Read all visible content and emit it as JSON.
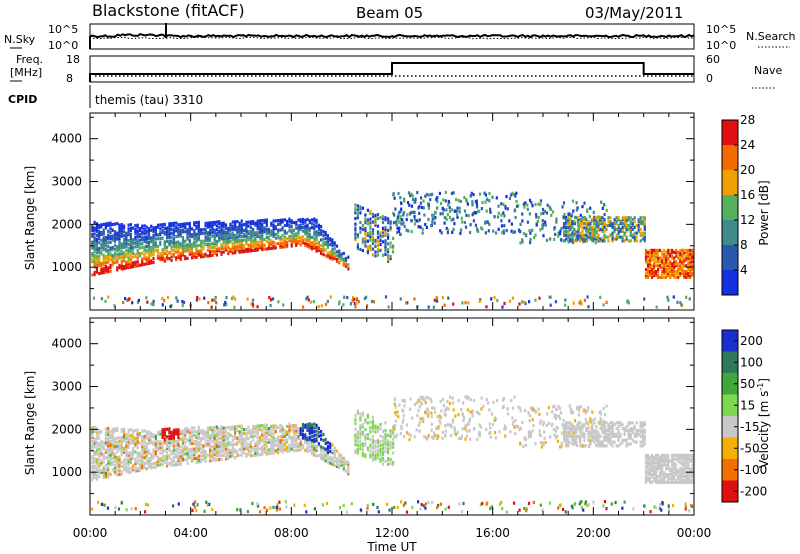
{
  "header": {
    "station": "Blackstone (fitACF)",
    "beam": "Beam 05",
    "date": "03/May/2011"
  },
  "top_panels": {
    "nsky_label": "N.Sky",
    "nsearch_label": "N.Search",
    "noise_ticks": [
      "10^5",
      "10^0"
    ],
    "freq_label_1": "Freq.",
    "freq_label_2": "[MHz]",
    "freq_ticks": [
      "18",
      "8"
    ],
    "nave_ticks": [
      "60",
      "0"
    ],
    "nave_label": "Nave",
    "cpid_label": "CPID",
    "cpid_value": "themis (tau) 3310"
  },
  "chart_data": [
    {
      "type": "heatmap",
      "name": "power",
      "ylabel": "Slant Range [km]",
      "ylim": [
        0,
        4600
      ],
      "yticks": [
        "1000",
        "2000",
        "3000",
        "4000"
      ],
      "colorbar_label": "Power [dB]",
      "colorbar_ticks": [
        "4",
        "8",
        "12",
        "16",
        "20",
        "24",
        "28"
      ],
      "colorbar_colors": [
        "#1530e0",
        "#2a58b0",
        "#3f8a8a",
        "#55b060",
        "#f0a000",
        "#f26a00",
        "#e01010"
      ]
    },
    {
      "type": "heatmap",
      "name": "velocity",
      "ylabel": "Slant Range [km]",
      "ylim": [
        0,
        4600
      ],
      "yticks": [
        "1000",
        "2000",
        "3000",
        "4000"
      ],
      "colorbar_label": "Velocity [m s",
      "colorbar_label_sup": "-1",
      "colorbar_label_end": "]",
      "colorbar_ticks": [
        "200",
        "100",
        "50",
        "15",
        "-15",
        "-50",
        "-100",
        "-200"
      ],
      "colorbar_colors": [
        "#1a2fd0",
        "#2e7a58",
        "#40a838",
        "#7cd850",
        "#c8c8c8",
        "#f4b000",
        "#f27000",
        "#e01010"
      ]
    }
  ],
  "x_axis": {
    "ticks": [
      "00:00",
      "04:00",
      "08:00",
      "12:00",
      "16:00",
      "20:00",
      "00:00"
    ],
    "label": "Time UT",
    "range_hours": [
      0,
      24
    ]
  }
}
